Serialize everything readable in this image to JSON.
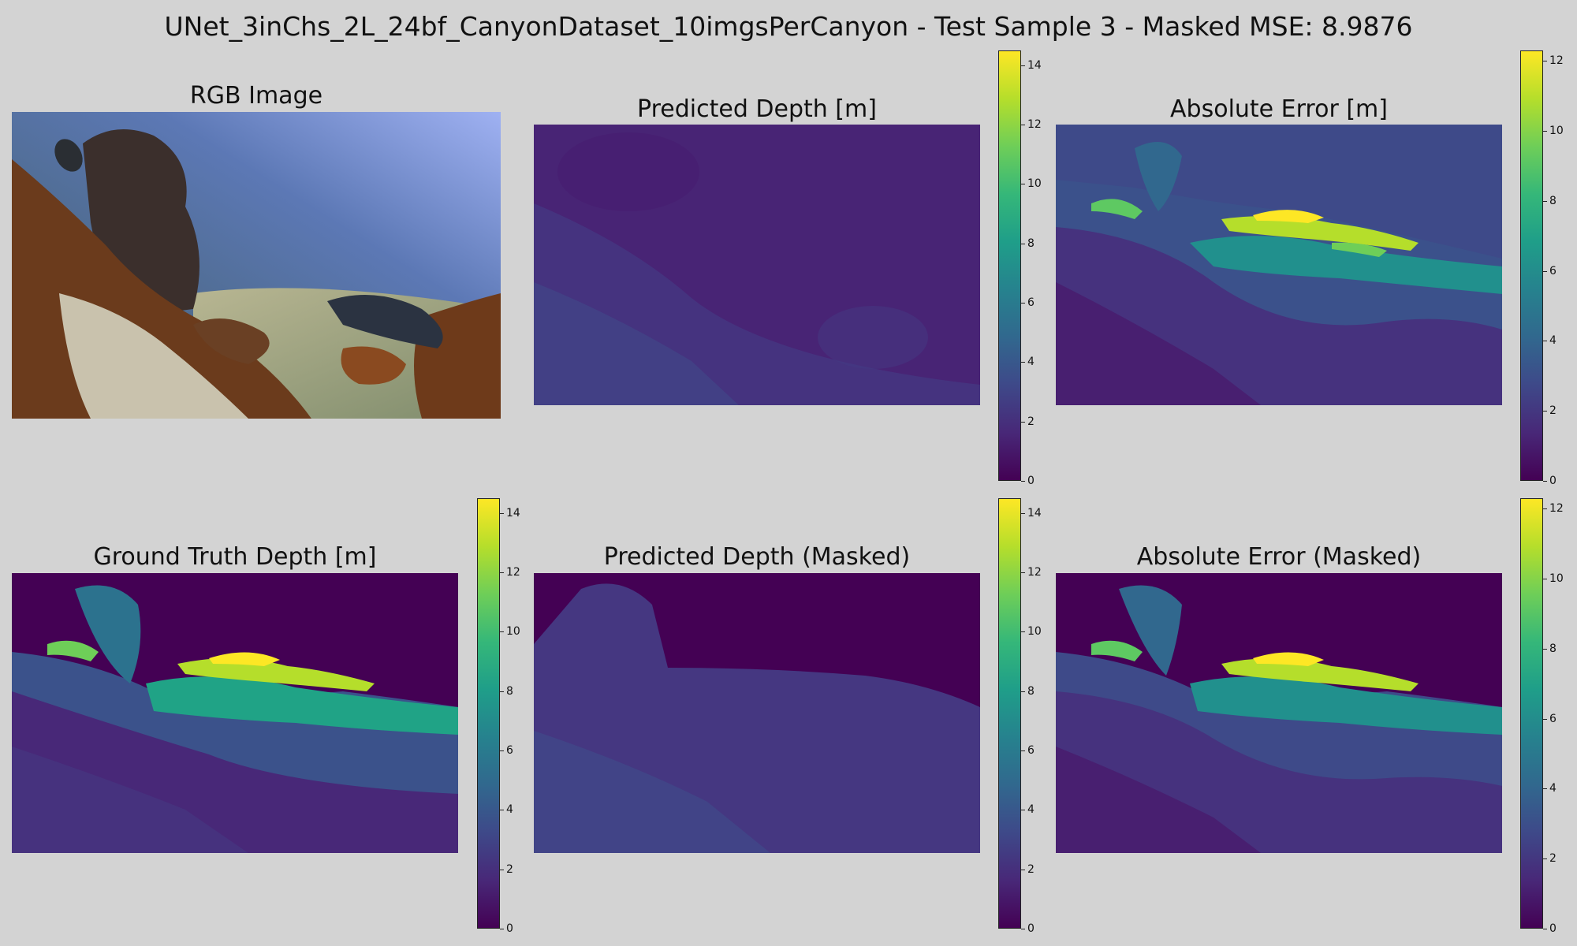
{
  "figure": {
    "title": "UNet_3inChs_2L_24bf_CanyonDataset_10imgsPerCanyon - Test Sample 3 - Masked MSE: 8.9876"
  },
  "colors": {
    "background": "#d3d3d3",
    "viridis": [
      "#440154",
      "#482878",
      "#3e4989",
      "#31688e",
      "#26828e",
      "#1f9e89",
      "#35b779",
      "#6ece58",
      "#b5de2b",
      "#fde725"
    ]
  },
  "panels": [
    {
      "id": "rgb",
      "title": "RGB Image",
      "colorbar": null
    },
    {
      "id": "pred",
      "title": "Predicted Depth [m]",
      "colorbar": {
        "min": 0,
        "max": 14.5,
        "ticks": [
          "0",
          "2",
          "4",
          "6",
          "8",
          "10",
          "12",
          "14"
        ]
      }
    },
    {
      "id": "abserr",
      "title": "Absolute Error [m]",
      "colorbar": {
        "min": 0,
        "max": 12.3,
        "ticks": [
          "0",
          "2",
          "4",
          "6",
          "8",
          "10",
          "12"
        ]
      }
    },
    {
      "id": "gt",
      "title": "Ground Truth Depth [m]",
      "colorbar": {
        "min": 0,
        "max": 14.5,
        "ticks": [
          "0",
          "2",
          "4",
          "6",
          "8",
          "10",
          "12",
          "14"
        ]
      }
    },
    {
      "id": "predmask",
      "title": "Predicted Depth (Masked)",
      "colorbar": {
        "min": 0,
        "max": 14.5,
        "ticks": [
          "0",
          "2",
          "4",
          "6",
          "8",
          "10",
          "12",
          "14"
        ]
      }
    },
    {
      "id": "errmask",
      "title": "Absolute Error (Masked)",
      "colorbar": {
        "min": 0,
        "max": 12.3,
        "ticks": [
          "0",
          "2",
          "4",
          "6",
          "8",
          "10",
          "12"
        ]
      }
    }
  ],
  "chart_data": {
    "type": "heatmap",
    "title": "UNet_3inChs_2L_24bf_CanyonDataset_10imgsPerCanyon - Test Sample 3 - Masked MSE: 8.9876",
    "colormap": "viridis",
    "masked_mse": 8.9876,
    "subplots": [
      {
        "title": "RGB Image",
        "kind": "image"
      },
      {
        "title": "Predicted Depth [m]",
        "colorbar_range": [
          0,
          14.5
        ]
      },
      {
        "title": "Absolute Error [m]",
        "colorbar_range": [
          0,
          12.3
        ]
      },
      {
        "title": "Ground Truth Depth [m]",
        "colorbar_range": [
          0,
          14.5
        ]
      },
      {
        "title": "Predicted Depth (Masked)",
        "colorbar_range": [
          0,
          14.5
        ]
      },
      {
        "title": "Absolute Error (Masked)",
        "colorbar_range": [
          0,
          12.3
        ]
      }
    ]
  }
}
